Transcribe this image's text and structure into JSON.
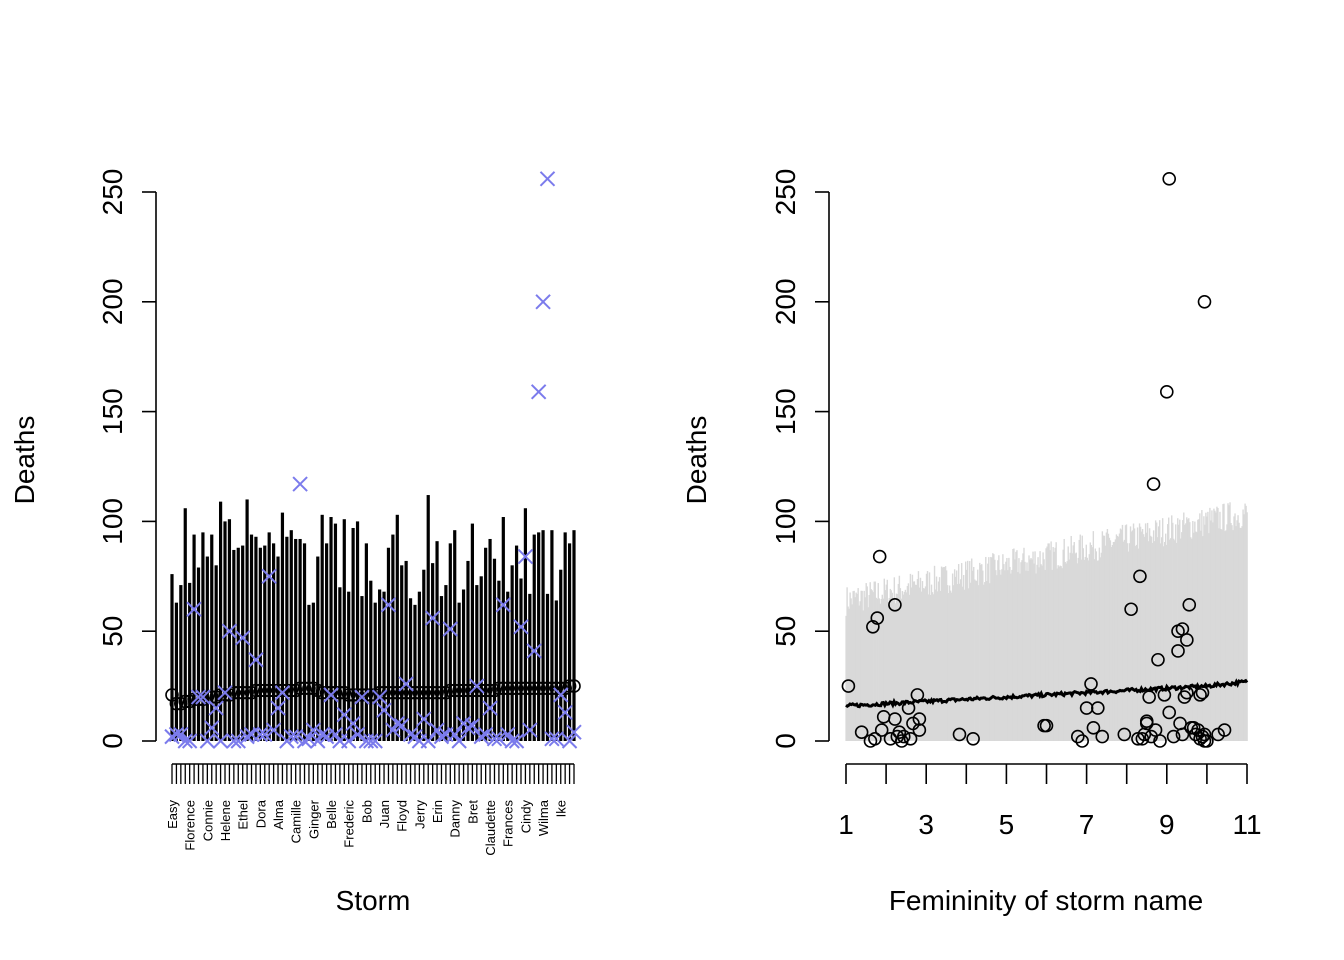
{
  "colors": {
    "axis": "#000000",
    "interval": "#000000",
    "observed_marker": "#7b7bec",
    "band": "#d9d9d9",
    "mean_line": "#000000"
  },
  "chart_data": [
    {
      "type": "scatter",
      "title": "",
      "xlabel": "Storm",
      "ylabel": "Deaths",
      "ylim": [
        0,
        250
      ],
      "yticks": [
        0,
        50,
        100,
        150,
        200,
        250
      ],
      "x_tick_labels": [
        "Easy",
        "Florence",
        "Connie",
        "Helene",
        "Ethel",
        "Dora",
        "Alma",
        "Camille",
        "Ginger",
        "Belle",
        "Frederic",
        "Bob",
        "Juan",
        "Floyd",
        "Jerry",
        "Erin",
        "Danny",
        "Bret",
        "Claudette",
        "Frances",
        "Cindy",
        "Wilma",
        "Ike"
      ],
      "storm_count": 92,
      "observed_marker": "x",
      "predicted_mean_marker": "o",
      "predicted_mean": [
        21,
        17,
        17,
        18,
        18,
        19,
        19,
        19,
        20,
        20,
        20,
        21,
        21,
        21,
        22,
        22,
        22,
        22,
        22,
        23,
        23,
        23,
        23,
        23,
        23,
        23,
        23,
        23,
        23,
        24,
        24,
        24,
        24,
        23,
        22,
        22,
        22,
        22,
        22,
        22,
        21,
        21,
        21,
        21,
        21,
        21,
        21,
        22,
        22,
        22,
        22,
        22,
        22,
        22,
        22,
        22,
        22,
        22,
        22,
        22,
        22,
        22,
        22,
        23,
        23,
        23,
        23,
        23,
        23,
        23,
        23,
        23,
        23,
        23,
        24,
        24,
        24,
        24,
        24,
        24,
        24,
        24,
        24,
        24,
        24,
        24,
        24,
        24,
        24,
        24,
        25,
        25
      ],
      "interval_upper": [
        76,
        63,
        71,
        106,
        72,
        94,
        79,
        95,
        84,
        94,
        80,
        109,
        100,
        101,
        87,
        88,
        89,
        110,
        94,
        93,
        88,
        89,
        95,
        90,
        84,
        104,
        93,
        96,
        92,
        92,
        90,
        62,
        63,
        84,
        103,
        90,
        102,
        99,
        70,
        101,
        68,
        97,
        100,
        66,
        90,
        73,
        63,
        69,
        68,
        88,
        94,
        103,
        80,
        82,
        65,
        62,
        68,
        78,
        112,
        81,
        91,
        66,
        71,
        90,
        96,
        63,
        69,
        82,
        99,
        71,
        75,
        88,
        92,
        83,
        73,
        102,
        68,
        80,
        89,
        74,
        106,
        67,
        94,
        95,
        96,
        67,
        96,
        64,
        78,
        95,
        90,
        96
      ],
      "observed": [
        2,
        3,
        3,
        0,
        0,
        60,
        20,
        20,
        0,
        6,
        15,
        0,
        22,
        50,
        0,
        0,
        47,
        2,
        3,
        37,
        3,
        3,
        75,
        5,
        15,
        22,
        0,
        2,
        2,
        117,
        0,
        1,
        5,
        0,
        3,
        2,
        21,
        3,
        0,
        12,
        0,
        8,
        3,
        20,
        0,
        0,
        0,
        20,
        14,
        62,
        5,
        8,
        7,
        26,
        3,
        2,
        0,
        10,
        0,
        56,
        5,
        2,
        3,
        51,
        3,
        0,
        8,
        6,
        7,
        25,
        2,
        3,
        15,
        1,
        1,
        62,
        3,
        0,
        0,
        52,
        84,
        5,
        41,
        159,
        200,
        256,
        1,
        1,
        21,
        13,
        0,
        4
      ],
      "observed_order_note": ""
    },
    {
      "type": "scatter",
      "title": "",
      "xlabel": "Femininity of storm name",
      "ylabel": "Deaths",
      "xlim": [
        1,
        11
      ],
      "xticks": [
        1,
        3,
        5,
        7,
        9,
        11
      ],
      "ylim": [
        0,
        250
      ],
      "yticks": [
        0,
        50,
        100,
        150,
        200,
        250
      ],
      "band_lower": [
        0,
        0
      ],
      "band_upper_start": 63,
      "band_upper_end": 103,
      "mean_line": [
        [
          1,
          16
        ],
        [
          2,
          17
        ],
        [
          3,
          18
        ],
        [
          4,
          19
        ],
        [
          5,
          20
        ],
        [
          6,
          21
        ],
        [
          7,
          22
        ],
        [
          8,
          23
        ],
        [
          9,
          24
        ],
        [
          10,
          25
        ],
        [
          11,
          27
        ]
      ],
      "points": [
        [
          1.06,
          25
        ],
        [
          1.39,
          4
        ],
        [
          1.61,
          0
        ],
        [
          1.67,
          52
        ],
        [
          1.72,
          1
        ],
        [
          1.78,
          56
        ],
        [
          1.84,
          84
        ],
        [
          1.89,
          5
        ],
        [
          1.94,
          11
        ],
        [
          2.11,
          1
        ],
        [
          2.22,
          62
        ],
        [
          2.22,
          10
        ],
        [
          2.28,
          2
        ],
        [
          2.33,
          4
        ],
        [
          2.39,
          0
        ],
        [
          2.44,
          2
        ],
        [
          2.56,
          15
        ],
        [
          2.61,
          1
        ],
        [
          2.67,
          8
        ],
        [
          2.78,
          21
        ],
        [
          2.83,
          5
        ],
        [
          2.83,
          10
        ],
        [
          3.83,
          3
        ],
        [
          4.17,
          1
        ],
        [
          5.94,
          7
        ],
        [
          6.0,
          7
        ],
        [
          6.78,
          2
        ],
        [
          6.89,
          0
        ],
        [
          7.0,
          15
        ],
        [
          7.11,
          26
        ],
        [
          7.17,
          6
        ],
        [
          7.28,
          15
        ],
        [
          7.39,
          2
        ],
        [
          7.94,
          3
        ],
        [
          8.11,
          60
        ],
        [
          8.28,
          1
        ],
        [
          8.33,
          75
        ],
        [
          8.39,
          1
        ],
        [
          8.44,
          3
        ],
        [
          8.5,
          9
        ],
        [
          8.5,
          8
        ],
        [
          8.56,
          20
        ],
        [
          8.61,
          2
        ],
        [
          8.67,
          117
        ],
        [
          8.72,
          5
        ],
        [
          8.78,
          37
        ],
        [
          8.83,
          0
        ],
        [
          8.94,
          21
        ],
        [
          9.0,
          159
        ],
        [
          9.06,
          13
        ],
        [
          9.06,
          256
        ],
        [
          9.17,
          2
        ],
        [
          9.28,
          50
        ],
        [
          9.28,
          41
        ],
        [
          9.33,
          8
        ],
        [
          9.39,
          3
        ],
        [
          9.39,
          51
        ],
        [
          9.44,
          20
        ],
        [
          9.5,
          22
        ],
        [
          9.5,
          46
        ],
        [
          9.56,
          62
        ],
        [
          9.61,
          6
        ],
        [
          9.67,
          6
        ],
        [
          9.72,
          3
        ],
        [
          9.78,
          5
        ],
        [
          9.83,
          21
        ],
        [
          9.83,
          1
        ],
        [
          9.89,
          2
        ],
        [
          9.89,
          22
        ],
        [
          9.94,
          0
        ],
        [
          9.94,
          3
        ],
        [
          9.94,
          200
        ],
        [
          10.0,
          0
        ],
        [
          10.28,
          3
        ],
        [
          10.44,
          5
        ]
      ]
    }
  ]
}
